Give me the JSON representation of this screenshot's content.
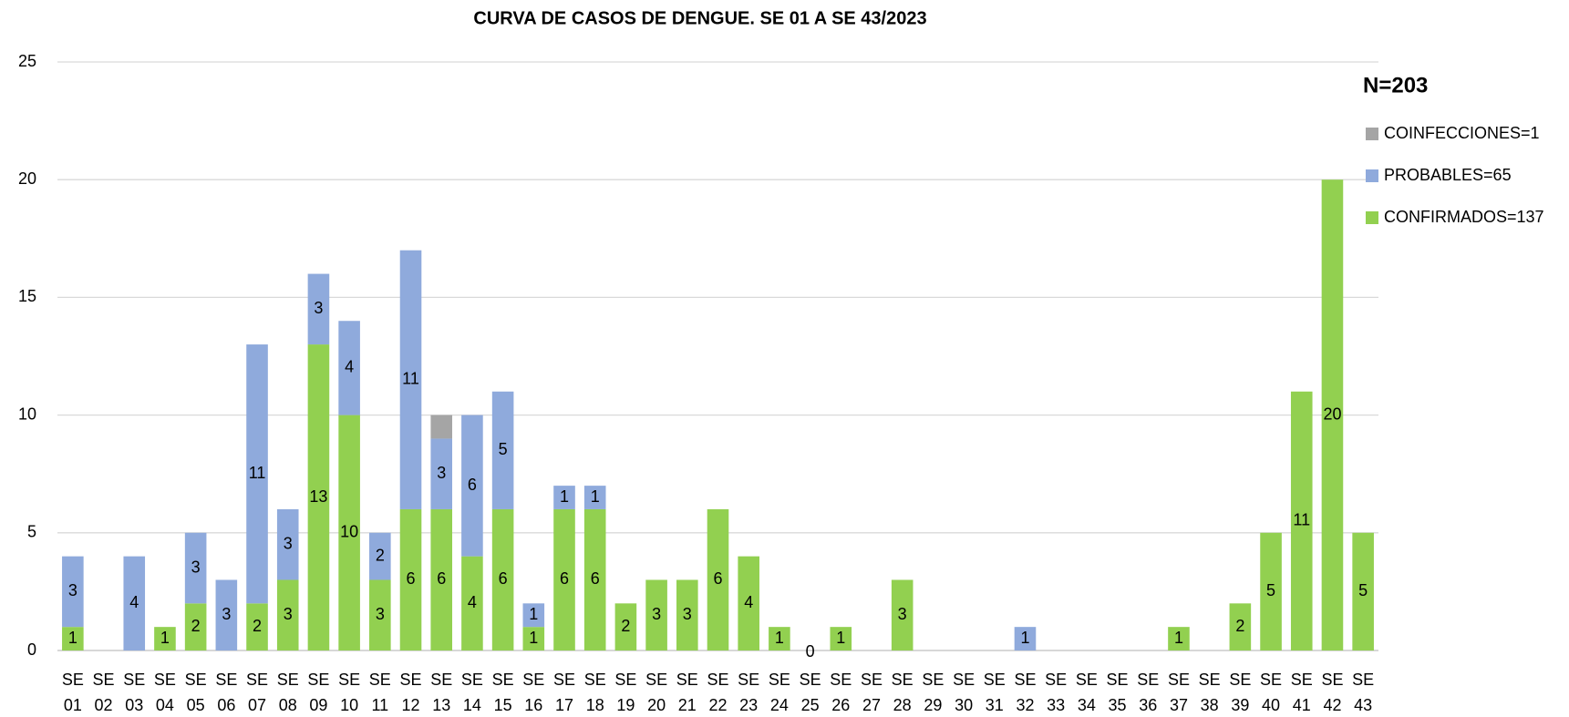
{
  "chart_data": {
    "type": "stacked_bar",
    "title": "CURVA DE CASOS DE DENGUE. SE 01 A SE 43/2023",
    "annotation": "N=203",
    "categories": [
      "SE 01",
      "SE 02",
      "SE 03",
      "SE 04",
      "SE 05",
      "SE 06",
      "SE 07",
      "SE 08",
      "SE 09",
      "SE 10",
      "SE 11",
      "SE 12",
      "SE 13",
      "SE 14",
      "SE 15",
      "SE 16",
      "SE 17",
      "SE 18",
      "SE 19",
      "SE 20",
      "SE 21",
      "SE 22",
      "SE 23",
      "SE 24",
      "SE 25",
      "SE 26",
      "SE 27",
      "SE 28",
      "SE 29",
      "SE 30",
      "SE 31",
      "SE 32",
      "SE 33",
      "SE 34",
      "SE 35",
      "SE 36",
      "SE 37",
      "SE 38",
      "SE 39",
      "SE 40",
      "SE 41",
      "SE 42",
      "SE 43"
    ],
    "series": [
      {
        "name": "CONFIRMADOS=137",
        "color": "#92d050",
        "values": [
          1,
          0,
          0,
          1,
          2,
          0,
          2,
          3,
          13,
          10,
          3,
          6,
          6,
          4,
          6,
          1,
          6,
          6,
          2,
          3,
          3,
          6,
          4,
          1,
          0,
          1,
          0,
          3,
          0,
          0,
          0,
          0,
          0,
          0,
          0,
          0,
          1,
          0,
          2,
          5,
          11,
          20,
          5
        ],
        "value_labels": [
          "1",
          null,
          null,
          "1",
          "2",
          null,
          "2",
          "3",
          "13",
          "10",
          "3",
          "6",
          "6",
          "4",
          "6",
          "1",
          "6",
          "6",
          "2",
          "3",
          "3",
          "6",
          "4",
          "1",
          "0",
          "1",
          null,
          "3",
          null,
          null,
          null,
          null,
          null,
          null,
          null,
          null,
          "1",
          null,
          "2",
          "5",
          "11",
          "20",
          "5"
        ]
      },
      {
        "name": "PROBABLES=65",
        "color": "#8faadc",
        "values": [
          3,
          0,
          4,
          0,
          3,
          3,
          11,
          3,
          3,
          4,
          2,
          11,
          3,
          6,
          5,
          1,
          1,
          1,
          0,
          0,
          0,
          0,
          0,
          0,
          0,
          0,
          0,
          0,
          0,
          0,
          0,
          1,
          0,
          0,
          0,
          0,
          0,
          0,
          0,
          0,
          0,
          0,
          0
        ],
        "value_labels": [
          "3",
          null,
          "4",
          null,
          "3",
          "3",
          "11",
          "3",
          "3",
          "4",
          "2",
          "11",
          "3",
          "6",
          "5",
          "1",
          "1",
          "1",
          null,
          null,
          null,
          null,
          null,
          null,
          null,
          null,
          null,
          null,
          null,
          null,
          null,
          "1",
          null,
          null,
          null,
          null,
          null,
          null,
          null,
          null,
          null,
          null,
          null
        ]
      },
      {
        "name": "COINFECCIONES=1",
        "color": "#a5a5a5",
        "values": [
          0,
          0,
          0,
          0,
          0,
          0,
          0,
          0,
          0,
          0,
          0,
          0,
          1,
          0,
          0,
          0,
          0,
          0,
          0,
          0,
          0,
          0,
          0,
          0,
          0,
          0,
          0,
          0,
          0,
          0,
          0,
          0,
          0,
          0,
          0,
          0,
          0,
          0,
          0,
          0,
          0,
          0,
          0
        ]
      }
    ],
    "ylim": [
      0,
      25
    ],
    "yticks": [
      0,
      5,
      10,
      15,
      20,
      25
    ],
    "grid": true
  }
}
